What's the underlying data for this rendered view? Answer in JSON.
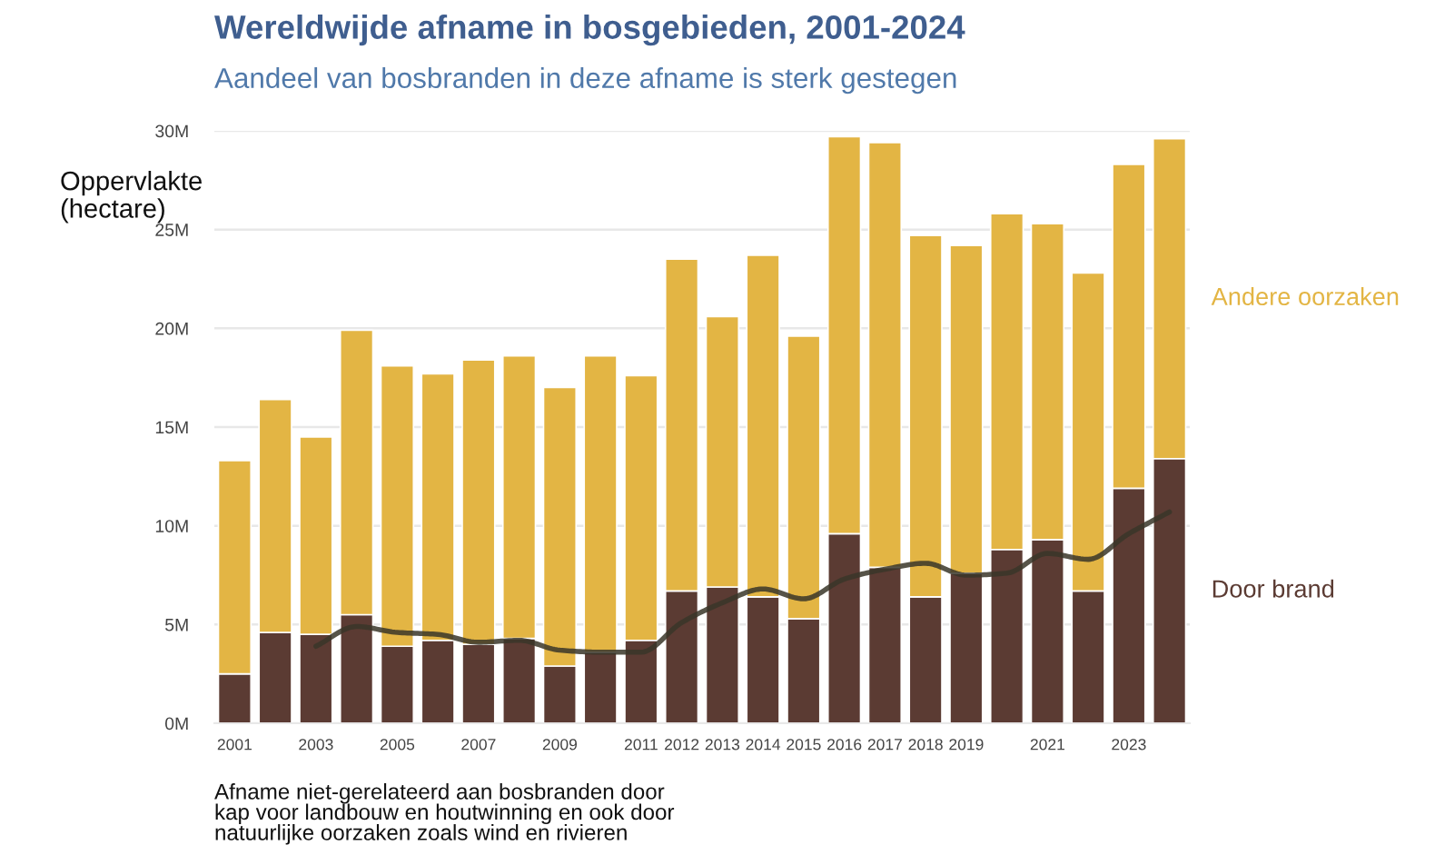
{
  "chart_data": {
    "type": "bar",
    "stacked": true,
    "title": "Wereldwijde afname in bosgebieden, 2001-2024",
    "subtitle": "Aandeel van bosbranden in deze afname is sterk gestegen",
    "ylabel": "Oppervlakte\n(hectare)",
    "categories": [
      "2001",
      null,
      "2003",
      null,
      "2005",
      null,
      "2007",
      null,
      "2009",
      null,
      "2011",
      "2012",
      "2013",
      "2014",
      "2015",
      "2016",
      "2017",
      "2018",
      "2019",
      null,
      "2021",
      null,
      "2023",
      null
    ],
    "series": [
      {
        "name": "Door brand",
        "color": "#5b3b33",
        "values": [
          2.5,
          4.6,
          4.5,
          5.5,
          3.9,
          4.2,
          4.0,
          4.3,
          2.9,
          3.6,
          4.2,
          6.7,
          6.9,
          6.4,
          5.3,
          9.6,
          7.9,
          6.4,
          7.6,
          8.8,
          9.3,
          6.7,
          11.9,
          13.4
        ]
      },
      {
        "name": "Andere oorzaken",
        "color": "#e3b544",
        "values": [
          10.8,
          11.8,
          10.0,
          14.4,
          14.2,
          13.5,
          14.4,
          14.3,
          14.1,
          15.0,
          13.4,
          16.8,
          13.7,
          17.3,
          14.3,
          20.1,
          21.5,
          18.3,
          16.6,
          17.0,
          16.0,
          16.1,
          16.4,
          16.2
        ]
      },
      {
        "type": "line",
        "color": "#3a3629",
        "values": [
          null,
          null,
          3.9,
          4.9,
          4.6,
          4.5,
          4.1,
          4.2,
          3.7,
          3.6,
          3.6,
          5.1,
          6.1,
          6.8,
          6.3,
          7.3,
          7.8,
          8.1,
          7.5,
          7.6,
          8.6,
          8.3,
          9.6,
          10.7
        ]
      }
    ],
    "ylim": [
      0,
      30
    ],
    "yticks": [
      {
        "value": 0,
        "label": "0M"
      },
      {
        "value": 5,
        "label": "5M"
      },
      {
        "value": 10,
        "label": "10M"
      },
      {
        "value": 15,
        "label": "15M"
      },
      {
        "value": 20,
        "label": "20M"
      },
      {
        "value": 25,
        "label": "25M"
      },
      {
        "value": 30,
        "label": "30M"
      }
    ],
    "grid": "y",
    "annotations": [
      "Afname niet-gerelateerd aan bosbranden door\nkap voor landbouw en houtwinning en ook door\nnatuurlijke oorzaken zoals wind en rivieren"
    ]
  }
}
